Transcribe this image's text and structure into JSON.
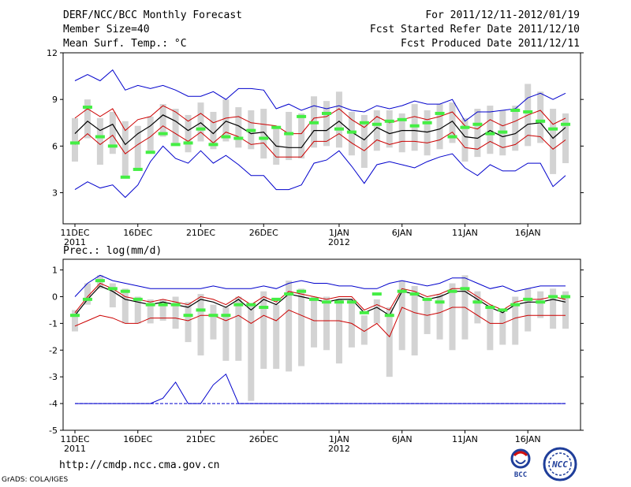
{
  "header": {
    "title": "DERF/NCC/BCC Monthly Forecast",
    "member_size": "Member Size=40",
    "variable": "Mean Surf. Temp.: °C",
    "period": "For 2011/12/11-2012/01/19",
    "started": "Fcst Started Refer Date 2011/12/10",
    "produced": "Fcst Produced Date 2011/12/11"
  },
  "footer": {
    "url": "http://cmdp.ncc.cma.gov.cn",
    "grads": "GrADS: COLA/IGES",
    "logo_bcc": "BCC",
    "logo_ncc": "NCC"
  },
  "colors": {
    "blue": "#0000cc",
    "red": "#cc0000",
    "black": "#000000",
    "bar": "#d3d3d3",
    "green": "#44ee44"
  },
  "chart_data": [
    {
      "type": "box-forecast",
      "title": "Mean Surf. Temp.: °C",
      "ylim": [
        1,
        12
      ],
      "yticks": [
        3,
        6,
        9,
        12
      ],
      "x_days": 40,
      "xticks": [
        {
          "day": 1,
          "label": "11DEC",
          "sub": "2011"
        },
        {
          "day": 6,
          "label": "16DEC",
          "sub": ""
        },
        {
          "day": 11,
          "label": "21DEC",
          "sub": ""
        },
        {
          "day": 16,
          "label": "26DEC",
          "sub": ""
        },
        {
          "day": 22,
          "label": "1JAN",
          "sub": "2012"
        },
        {
          "day": 27,
          "label": "6JAN",
          "sub": ""
        },
        {
          "day": 32,
          "label": "11JAN",
          "sub": ""
        },
        {
          "day": 37,
          "label": "16JAN",
          "sub": ""
        }
      ],
      "series": [
        {
          "name": "max",
          "color": "blue",
          "values": [
            10.2,
            10.6,
            10.2,
            10.9,
            9.6,
            9.9,
            9.7,
            9.9,
            9.6,
            9.2,
            9.2,
            9.5,
            9.0,
            9.7,
            9.7,
            9.6,
            8.4,
            8.7,
            8.3,
            8.6,
            8.4,
            8.6,
            8.3,
            8.2,
            8.6,
            8.4,
            8.6,
            8.9,
            8.7,
            8.7,
            9.0,
            7.6,
            8.2,
            8.2,
            8.3,
            8.4,
            9.1,
            9.4,
            9.0,
            9.4
          ]
        },
        {
          "name": "upper",
          "color": "red",
          "values": [
            7.8,
            8.4,
            7.9,
            8.4,
            7.0,
            7.7,
            7.9,
            8.6,
            8.2,
            7.6,
            8.1,
            7.5,
            7.8,
            7.9,
            7.5,
            7.4,
            7.3,
            6.8,
            6.8,
            7.8,
            7.9,
            8.4,
            7.7,
            7.2,
            7.9,
            7.5,
            7.7,
            7.9,
            7.7,
            7.9,
            8.2,
            7.3,
            7.1,
            7.7,
            7.3,
            7.6,
            8.0,
            8.3,
            7.4,
            7.8
          ]
        },
        {
          "name": "mean",
          "color": "black",
          "values": [
            6.8,
            7.6,
            7.0,
            7.4,
            6.1,
            6.8,
            7.3,
            8.0,
            7.6,
            7.0,
            7.5,
            6.8,
            7.6,
            7.3,
            6.8,
            6.9,
            6.0,
            5.9,
            5.9,
            7.0,
            7.0,
            7.6,
            6.9,
            6.4,
            7.2,
            6.8,
            7.0,
            7.0,
            6.9,
            7.1,
            7.6,
            6.6,
            6.5,
            7.0,
            6.6,
            6.8,
            7.4,
            7.5,
            6.5,
            7.2
          ]
        },
        {
          "name": "lower",
          "color": "red",
          "values": [
            6.1,
            6.8,
            6.1,
            6.7,
            5.5,
            6.1,
            6.6,
            7.3,
            6.8,
            6.3,
            6.9,
            6.2,
            6.9,
            6.6,
            6.1,
            6.2,
            5.3,
            5.3,
            5.3,
            6.3,
            6.3,
            6.8,
            6.2,
            5.7,
            6.4,
            6.1,
            6.3,
            6.3,
            6.2,
            6.4,
            6.9,
            5.9,
            5.8,
            6.3,
            5.9,
            6.1,
            6.7,
            6.6,
            5.8,
            6.4
          ]
        },
        {
          "name": "min",
          "color": "blue",
          "values": [
            3.2,
            3.7,
            3.3,
            3.5,
            2.7,
            3.5,
            5.0,
            6.0,
            5.2,
            4.9,
            5.7,
            4.9,
            5.4,
            4.8,
            4.1,
            4.1,
            3.2,
            3.2,
            3.5,
            4.9,
            5.1,
            5.7,
            4.7,
            3.6,
            4.8,
            5.0,
            4.8,
            4.6,
            5.0,
            5.3,
            5.5,
            4.6,
            4.1,
            4.8,
            4.4,
            4.4,
            4.9,
            4.9,
            3.4,
            4.1
          ]
        }
      ],
      "boxes": [
        [
          5.0,
          7.8
        ],
        [
          6.5,
          9.0
        ],
        [
          4.8,
          7.8
        ],
        [
          5.5,
          8.2
        ],
        [
          4.0,
          7.6
        ],
        [
          4.5,
          7.3
        ],
        [
          5.6,
          7.9
        ],
        [
          6.6,
          8.7
        ],
        [
          6.1,
          8.4
        ],
        [
          5.6,
          8.0
        ],
        [
          6.3,
          8.8
        ],
        [
          5.8,
          8.2
        ],
        [
          6.3,
          9.0
        ],
        [
          5.9,
          8.5
        ],
        [
          5.8,
          8.3
        ],
        [
          5.2,
          8.4
        ],
        [
          4.8,
          7.3
        ],
        [
          5.1,
          8.2
        ],
        [
          5.2,
          8.1
        ],
        [
          5.9,
          9.2
        ],
        [
          6.0,
          8.9
        ],
        [
          5.9,
          9.5
        ],
        [
          5.4,
          8.2
        ],
        [
          4.6,
          8.0
        ],
        [
          5.7,
          8.3
        ],
        [
          5.9,
          8.3
        ],
        [
          5.6,
          8.1
        ],
        [
          5.7,
          8.7
        ],
        [
          5.4,
          8.3
        ],
        [
          5.8,
          8.7
        ],
        [
          6.2,
          8.8
        ],
        [
          5.0,
          7.8
        ],
        [
          5.3,
          8.4
        ],
        [
          5.5,
          8.6
        ],
        [
          5.4,
          8.3
        ],
        [
          5.7,
          8.6
        ],
        [
          6.0,
          10.0
        ],
        [
          6.2,
          9.5
        ],
        [
          4.2,
          8.4
        ],
        [
          4.9,
          8.1
        ]
      ],
      "marks": [
        6.2,
        8.5,
        6.6,
        6.0,
        4.0,
        4.5,
        5.6,
        6.8,
        6.1,
        6.2,
        7.1,
        6.1,
        6.6,
        6.5,
        7.0,
        6.5,
        7.2,
        6.8,
        7.9,
        7.5,
        8.1,
        7.1,
        6.9,
        7.5,
        7.4,
        7.6,
        7.7,
        7.3,
        7.5,
        8.1,
        6.6,
        7.2,
        7.4,
        6.8,
        6.9,
        8.3,
        8.2,
        7.6,
        7.1,
        7.4
      ]
    },
    {
      "type": "box-forecast",
      "title": "Prec.: log(mm/d)",
      "ylim": [
        -5,
        1.4
      ],
      "yticks": [
        -5,
        -4,
        -3,
        -2,
        -1,
        0,
        1
      ],
      "x_days": 40,
      "xticks": [
        {
          "day": 1,
          "label": "11DEC",
          "sub": "2011"
        },
        {
          "day": 6,
          "label": "16DEC",
          "sub": ""
        },
        {
          "day": 11,
          "label": "21DEC",
          "sub": ""
        },
        {
          "day": 16,
          "label": "26DEC",
          "sub": ""
        },
        {
          "day": 22,
          "label": "1JAN",
          "sub": "2012"
        },
        {
          "day": 27,
          "label": "6JAN",
          "sub": ""
        },
        {
          "day": 32,
          "label": "11JAN",
          "sub": ""
        },
        {
          "day": 37,
          "label": "16JAN",
          "sub": ""
        }
      ],
      "series": [
        {
          "name": "max",
          "color": "blue",
          "values": [
            0.0,
            0.5,
            0.8,
            0.6,
            0.5,
            0.4,
            0.3,
            0.3,
            0.3,
            0.3,
            0.3,
            0.4,
            0.3,
            0.3,
            0.3,
            0.4,
            0.3,
            0.5,
            0.6,
            0.5,
            0.5,
            0.4,
            0.4,
            0.3,
            0.3,
            0.5,
            0.6,
            0.5,
            0.4,
            0.5,
            0.7,
            0.7,
            0.5,
            0.3,
            0.4,
            0.2,
            0.3,
            0.4,
            0.4,
            0.4
          ]
        },
        {
          "name": "upper",
          "color": "red",
          "values": [
            -0.6,
            0.0,
            0.5,
            0.3,
            0.0,
            -0.1,
            -0.2,
            -0.1,
            -0.2,
            -0.3,
            0.0,
            -0.1,
            -0.3,
            0.0,
            -0.3,
            0.0,
            -0.2,
            0.2,
            0.1,
            0.0,
            -0.1,
            0.0,
            0.0,
            -0.5,
            -0.3,
            -0.5,
            0.3,
            0.2,
            0.0,
            0.1,
            0.3,
            0.3,
            0.0,
            -0.3,
            -0.5,
            -0.2,
            -0.1,
            -0.1,
            0.0,
            -0.1
          ]
        },
        {
          "name": "mean",
          "color": "black",
          "values": [
            -0.7,
            -0.1,
            0.4,
            0.2,
            -0.1,
            -0.2,
            -0.3,
            -0.2,
            -0.3,
            -0.4,
            -0.1,
            -0.2,
            -0.4,
            -0.1,
            -0.5,
            -0.1,
            -0.3,
            0.1,
            0.0,
            -0.1,
            -0.2,
            -0.1,
            -0.1,
            -0.6,
            -0.4,
            -0.7,
            0.2,
            0.1,
            -0.1,
            0.0,
            0.2,
            0.2,
            -0.1,
            -0.4,
            -0.6,
            -0.3,
            -0.2,
            -0.2,
            -0.1,
            -0.2
          ]
        },
        {
          "name": "lower",
          "color": "red",
          "values": [
            -1.1,
            -0.9,
            -0.7,
            -0.8,
            -1.0,
            -1.0,
            -0.8,
            -0.8,
            -0.8,
            -0.9,
            -0.7,
            -0.7,
            -0.9,
            -0.7,
            -1.0,
            -0.7,
            -0.9,
            -0.5,
            -0.7,
            -0.9,
            -0.9,
            -0.9,
            -1.0,
            -1.3,
            -1.0,
            -1.5,
            -0.4,
            -0.6,
            -0.7,
            -0.6,
            -0.4,
            -0.4,
            -0.7,
            -1.0,
            -1.0,
            -0.8,
            -0.7,
            -0.7,
            -0.7,
            -0.7
          ]
        },
        {
          "name": "min",
          "color": "blue",
          "values": [
            -4.0,
            -4.0,
            -4.0,
            -4.0,
            -4.0,
            -4.0,
            -4.0,
            -3.8,
            -3.2,
            -4.0,
            -4.0,
            -3.3,
            -2.9,
            -4.0,
            -4.0,
            -4.0,
            -4.0,
            -4.0,
            -4.0,
            -4.0,
            -4.0,
            -4.0,
            -4.0,
            -4.0,
            -4.0,
            -4.0,
            -4.0,
            -4.0,
            -4.0,
            -4.0,
            -4.0,
            -4.0,
            -4.0,
            -4.0,
            -4.0,
            -4.0,
            -4.0,
            -4.0,
            -4.0,
            -4.0
          ]
        },
        {
          "name": "floor",
          "color": "blue",
          "values": [
            -4.0,
            -4.0,
            -4.0,
            -4.0,
            -4.0,
            -4.0,
            -4.0,
            -4.0,
            -4.0,
            -4.0,
            -4.0,
            -4.0,
            -4.0,
            -4.0,
            -4.0,
            -4.0,
            -4.0,
            -4.0,
            -4.0,
            -4.0,
            -4.0,
            -4.0,
            -4.0,
            -4.0,
            -4.0,
            -4.0,
            -4.0,
            -4.0,
            -4.0,
            -4.0,
            -4.0,
            -4.0,
            -4.0,
            -4.0,
            -4.0,
            -4.0,
            -4.0,
            -4.0,
            -4.0,
            -4.0
          ],
          "dashed": true
        }
      ],
      "boxes": [
        [
          -1.3,
          -0.5
        ],
        [
          -0.3,
          0.5
        ],
        [
          0.3,
          0.8
        ],
        [
          -0.4,
          0.5
        ],
        [
          -1.0,
          0.3
        ],
        [
          -1.0,
          0.0
        ],
        [
          -1.0,
          -0.1
        ],
        [
          -0.9,
          -0.1
        ],
        [
          -1.2,
          0.0
        ],
        [
          -1.7,
          -0.2
        ],
        [
          -2.2,
          0.1
        ],
        [
          -1.6,
          -0.3
        ],
        [
          -2.4,
          -0.4
        ],
        [
          -2.4,
          0.0
        ],
        [
          -3.9,
          -0.3
        ],
        [
          -2.7,
          0.2
        ],
        [
          -2.7,
          -0.3
        ],
        [
          -2.8,
          0.6
        ],
        [
          -2.6,
          0.3
        ],
        [
          -1.9,
          0.0
        ],
        [
          -2.0,
          0.0
        ],
        [
          -2.5,
          -0.1
        ],
        [
          -1.9,
          -0.1
        ],
        [
          -1.8,
          -0.7
        ],
        [
          -1.0,
          -0.1
        ],
        [
          -3.0,
          -0.4
        ],
        [
          -2.0,
          0.6
        ],
        [
          -2.2,
          0.4
        ],
        [
          -1.4,
          -0.1
        ],
        [
          -1.6,
          0.1
        ],
        [
          -2.0,
          0.5
        ],
        [
          -1.6,
          0.8
        ],
        [
          -1.0,
          0.2
        ],
        [
          -2.0,
          -0.3
        ],
        [
          -1.8,
          -0.6
        ],
        [
          -1.8,
          0.0
        ],
        [
          -1.3,
          0.3
        ],
        [
          -0.8,
          0.2
        ],
        [
          -1.2,
          0.3
        ],
        [
          -1.2,
          0.2
        ]
      ],
      "marks": [
        -0.7,
        -0.1,
        0.6,
        0.3,
        0.2,
        -0.1,
        -0.3,
        -0.3,
        -0.3,
        -0.7,
        -0.5,
        -0.7,
        -0.7,
        -0.3,
        -0.3,
        -0.4,
        -0.1,
        0.1,
        0.2,
        -0.1,
        -0.2,
        -0.2,
        -0.2,
        -0.6,
        0.1,
        -0.7,
        0.2,
        0.1,
        -0.1,
        -0.2,
        0.2,
        0.3,
        -0.2,
        -0.4,
        -0.5,
        -0.3,
        -0.1,
        -0.2,
        0.0,
        0.0
      ]
    }
  ],
  "panel2_label": "Prec.: log(mm/d)"
}
